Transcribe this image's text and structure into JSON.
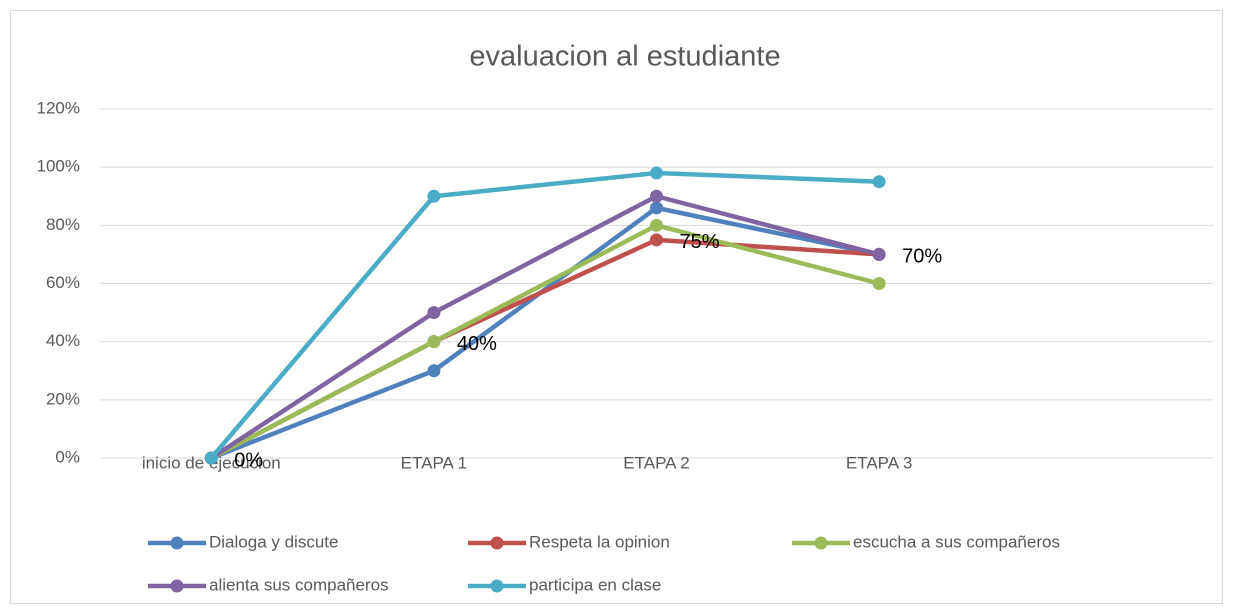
{
  "chart_data": {
    "type": "line",
    "title": "evaluacion al estudiante",
    "categories": [
      "inicio de ejecucion",
      "ETAPA 1",
      "ETAPA 2",
      "ETAPA 3",
      null
    ],
    "series": [
      {
        "name": "Dialoga y discute",
        "color": "#4f81bd",
        "values": [
          0,
          30,
          86,
          70,
          null
        ]
      },
      {
        "name": "Respeta la opinion",
        "color": "#c0504d",
        "values": [
          0,
          40,
          75,
          70,
          null
        ],
        "value_labels": [
          "0%",
          "40%",
          "75%",
          "70%",
          null
        ]
      },
      {
        "name": "escucha a sus compañeros",
        "color": "#9bbb59",
        "values": [
          0,
          40,
          80,
          60,
          null
        ]
      },
      {
        "name": "alienta sus compañeros",
        "color": "#8064a2",
        "values": [
          0,
          50,
          90,
          70,
          null
        ]
      },
      {
        "name": "participa en clase",
        "color": "#4bacc6",
        "values": [
          0,
          90,
          98,
          95,
          null
        ]
      }
    ],
    "ylim": [
      0,
      120
    ],
    "yticks": [
      {
        "value": 0,
        "label": "0%"
      },
      {
        "value": 20,
        "label": "20%"
      },
      {
        "value": 40,
        "label": "40%"
      },
      {
        "value": 60,
        "label": "60%"
      },
      {
        "value": 80,
        "label": "80%"
      },
      {
        "value": 100,
        "label": "100%"
      },
      {
        "value": 120,
        "label": "120%"
      }
    ],
    "grid": true,
    "legend": "bottom"
  }
}
